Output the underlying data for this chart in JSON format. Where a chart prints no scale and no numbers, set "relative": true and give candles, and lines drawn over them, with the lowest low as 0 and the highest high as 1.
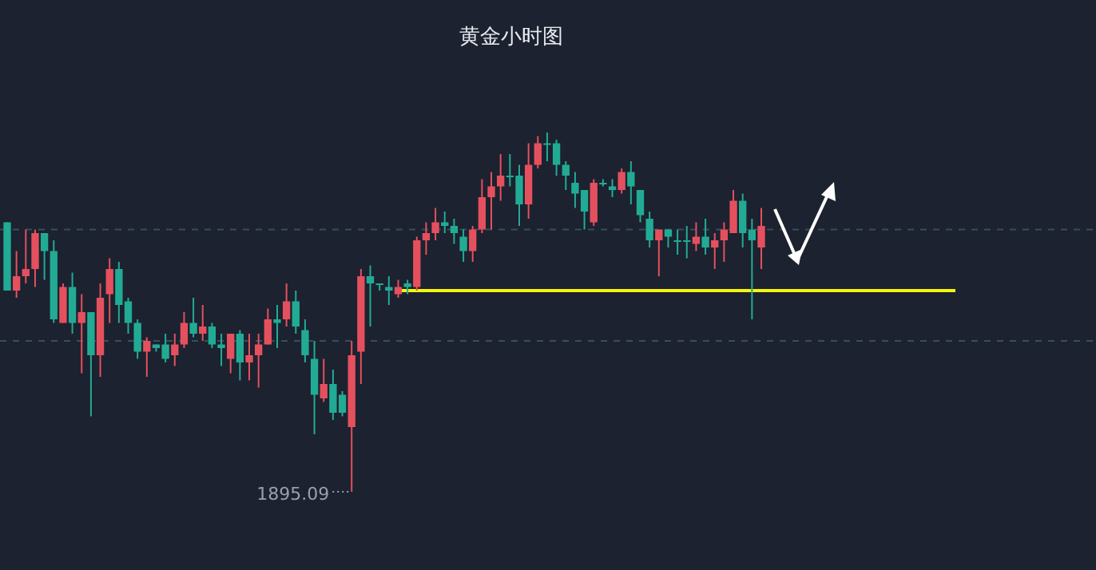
{
  "chart_data": {
    "type": "candlestick",
    "title": "黄金小时图",
    "relative": true,
    "categories": [
      null,
      null,
      null,
      null,
      null,
      null,
      null,
      null,
      null,
      null,
      null,
      null,
      null,
      null,
      null,
      null,
      null,
      null,
      null,
      null,
      null,
      null,
      null,
      null,
      null,
      null,
      null,
      null,
      null,
      null,
      null,
      null,
      null,
      null,
      null,
      null,
      null,
      null,
      null,
      null,
      null,
      null,
      null,
      null,
      null,
      null,
      null,
      null,
      null,
      null,
      null,
      null,
      null,
      null,
      null,
      null,
      null,
      null,
      null,
      null,
      null,
      null,
      null,
      null,
      null,
      null,
      null,
      null,
      null,
      null,
      null,
      null,
      null,
      null,
      null,
      null,
      null,
      null,
      null,
      null,
      null,
      null
    ],
    "ohlc": [
      [
        0.75,
        0.75,
        0.56,
        0.56
      ],
      [
        0.56,
        0.67,
        0.54,
        0.6
      ],
      [
        0.6,
        0.73,
        0.58,
        0.62
      ],
      [
        0.62,
        0.73,
        0.57,
        0.72
      ],
      [
        0.72,
        0.72,
        0.59,
        0.67
      ],
      [
        0.67,
        0.7,
        0.47,
        0.48
      ],
      [
        0.47,
        0.58,
        0.47,
        0.57
      ],
      [
        0.57,
        0.61,
        0.44,
        0.47
      ],
      [
        0.47,
        0.55,
        0.33,
        0.5
      ],
      [
        0.5,
        0.5,
        0.21,
        0.38
      ],
      [
        0.38,
        0.58,
        0.32,
        0.54
      ],
      [
        0.55,
        0.65,
        0.47,
        0.62
      ],
      [
        0.62,
        0.64,
        0.47,
        0.52
      ],
      [
        0.53,
        0.54,
        0.44,
        0.47
      ],
      [
        0.47,
        0.48,
        0.37,
        0.39
      ],
      [
        0.39,
        0.43,
        0.32,
        0.42
      ],
      [
        0.41,
        0.41,
        0.39,
        0.4
      ],
      [
        0.41,
        0.44,
        0.36,
        0.37
      ],
      [
        0.38,
        0.44,
        0.35,
        0.41
      ],
      [
        0.41,
        0.5,
        0.4,
        0.47
      ],
      [
        0.47,
        0.54,
        0.43,
        0.44
      ],
      [
        0.44,
        0.52,
        0.42,
        0.46
      ],
      [
        0.46,
        0.47,
        0.4,
        0.41
      ],
      [
        0.41,
        0.44,
        0.35,
        0.4
      ],
      [
        0.37,
        0.44,
        0.33,
        0.44
      ],
      [
        0.44,
        0.45,
        0.31,
        0.36
      ],
      [
        0.36,
        0.44,
        0.31,
        0.38
      ],
      [
        0.38,
        0.44,
        0.29,
        0.41
      ],
      [
        0.41,
        0.51,
        0.41,
        0.48
      ],
      [
        0.48,
        0.52,
        0.4,
        0.47
      ],
      [
        0.48,
        0.58,
        0.46,
        0.53
      ],
      [
        0.53,
        0.56,
        0.44,
        0.46
      ],
      [
        0.45,
        0.48,
        0.36,
        0.38
      ],
      [
        0.37,
        0.42,
        0.16,
        0.27
      ],
      [
        0.26,
        0.37,
        0.25,
        0.3
      ],
      [
        0.3,
        0.34,
        0.2,
        0.22
      ],
      [
        0.27,
        0.28,
        0.21,
        0.22
      ],
      [
        0.18,
        0.42,
        0,
        0.38
      ],
      [
        0.39,
        0.62,
        0.3,
        0.6
      ],
      [
        0.6,
        0.63,
        0.46,
        0.58
      ],
      [
        0.58,
        0.58,
        0.56,
        0.58
      ],
      [
        0.57,
        0.6,
        0.52,
        0.56
      ],
      [
        0.55,
        0.59,
        0.54,
        0.57
      ],
      [
        0.58,
        0.59,
        0.55,
        0.57
      ],
      [
        0.57,
        0.71,
        0.56,
        0.7
      ],
      [
        0.7,
        0.75,
        0.66,
        0.72
      ],
      [
        0.72,
        0.79,
        0.7,
        0.75
      ],
      [
        0.75,
        0.78,
        0.72,
        0.74
      ],
      [
        0.74,
        0.76,
        0.69,
        0.72
      ],
      [
        0.71,
        0.73,
        0.64,
        0.67
      ],
      [
        0.67,
        0.74,
        0.64,
        0.73
      ],
      [
        0.73,
        0.87,
        0.72,
        0.82
      ],
      [
        0.82,
        0.89,
        0.73,
        0.85
      ],
      [
        0.85,
        0.94,
        0.81,
        0.88
      ],
      [
        0.88,
        0.94,
        0.85,
        0.88
      ],
      [
        0.88,
        0.91,
        0.74,
        0.8
      ],
      [
        0.8,
        0.97,
        0.76,
        0.91
      ],
      [
        0.91,
        0.99,
        0.9,
        0.97
      ],
      [
        0.97,
        1.0,
        0.92,
        0.97
      ],
      [
        0.97,
        0.98,
        0.88,
        0.91
      ],
      [
        0.91,
        0.92,
        0.84,
        0.88
      ],
      [
        0.86,
        0.89,
        0.79,
        0.83
      ],
      [
        0.84,
        0.84,
        0.73,
        0.78
      ],
      [
        0.75,
        0.87,
        0.74,
        0.86
      ],
      [
        0.86,
        0.87,
        0.85,
        0.86
      ],
      [
        0.85,
        0.87,
        0.82,
        0.84
      ],
      [
        0.84,
        0.9,
        0.83,
        0.89
      ],
      [
        0.89,
        0.92,
        0.8,
        0.85
      ],
      [
        0.84,
        0.84,
        0.75,
        0.77
      ],
      [
        0.76,
        0.78,
        0.68,
        0.7
      ],
      [
        0.7,
        0.73,
        0.6,
        0.73
      ],
      [
        0.73,
        0.73,
        0.68,
        0.71
      ],
      [
        0.7,
        0.73,
        0.66,
        0.7
      ],
      [
        0.7,
        0.74,
        0.65,
        0.7
      ],
      [
        0.69,
        0.75,
        0.67,
        0.71
      ],
      [
        0.71,
        0.76,
        0.66,
        0.68
      ],
      [
        0.68,
        0.72,
        0.62,
        0.7
      ],
      [
        0.7,
        0.75,
        0.64,
        0.73
      ],
      [
        0.72,
        0.84,
        0.72,
        0.81
      ],
      [
        0.81,
        0.83,
        0.68,
        0.72
      ],
      [
        0.73,
        0.76,
        0.48,
        0.7
      ],
      [
        0.68,
        0.79,
        0.62,
        0.74
      ]
    ],
    "colors": [
      "#22ab94",
      "#e5505e",
      "#e5505e",
      "#e5505e",
      "#22ab94",
      "#22ab94",
      "#e5505e",
      "#22ab94",
      "#e5505e",
      "#22ab94",
      "#e5505e",
      "#e5505e",
      "#22ab94",
      "#22ab94",
      "#22ab94",
      "#e5505e",
      "#22ab94",
      "#22ab94",
      "#e5505e",
      "#e5505e",
      "#22ab94",
      "#e5505e",
      "#22ab94",
      "#22ab94",
      "#e5505e",
      "#22ab94",
      "#e5505e",
      "#e5505e",
      "#e5505e",
      "#22ab94",
      "#e5505e",
      "#22ab94",
      "#22ab94",
      "#22ab94",
      "#e5505e",
      "#22ab94",
      "#22ab94",
      "#e5505e",
      "#e5505e",
      "#22ab94",
      "#22ab94",
      "#22ab94",
      "#e5505e",
      "#22ab94",
      "#e5505e",
      "#e5505e",
      "#e5505e",
      "#22ab94",
      "#22ab94",
      "#22ab94",
      "#e5505e",
      "#e5505e",
      "#e5505e",
      "#e5505e",
      "#22ab94",
      "#22ab94",
      "#e5505e",
      "#e5505e",
      "#22ab94",
      "#22ab94",
      "#22ab94",
      "#22ab94",
      "#22ab94",
      "#e5505e",
      "#22ab94",
      "#22ab94",
      "#e5505e",
      "#22ab94",
      "#22ab94",
      "#22ab94",
      "#e5505e",
      "#22ab94",
      "#22ab94",
      "#22ab94",
      "#e5505e",
      "#22ab94",
      "#e5505e",
      "#e5505e",
      "#e5505e",
      "#22ab94",
      "#22ab94",
      "#e5505e"
    ],
    "ref_lines": [
      {
        "axis": "y",
        "value": 0.56,
        "color": "#f5f50a",
        "line_style": "solid"
      },
      {
        "axis": "y",
        "value": 0.73,
        "color": "#34505a",
        "line_style": "dashed"
      },
      {
        "axis": "y",
        "value": 0.42,
        "color": "#34505a",
        "line_style": "dashed"
      }
    ],
    "annotations": [
      "1895.09"
    ]
  }
}
